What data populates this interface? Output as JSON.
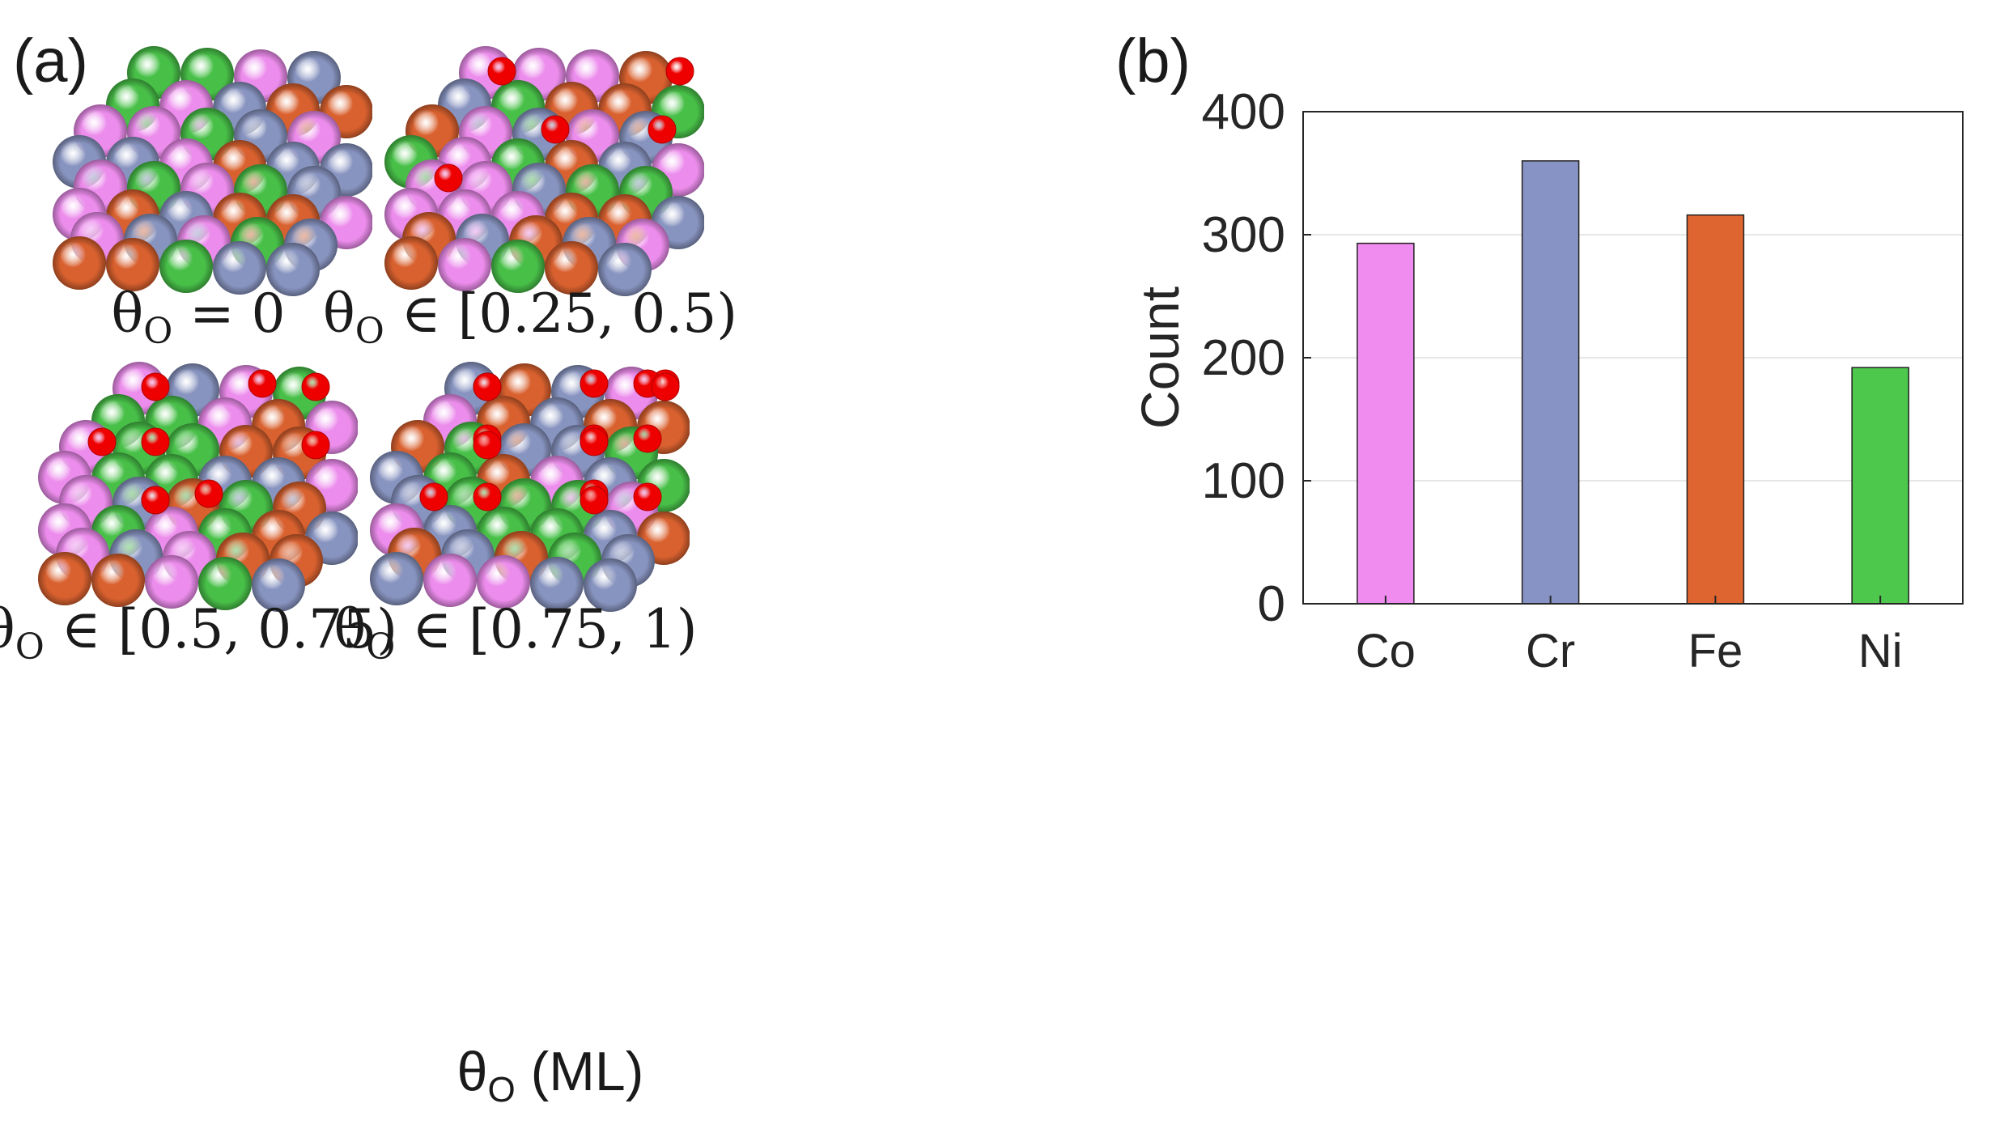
{
  "panel_a": {
    "label": "(a)",
    "structures": [
      {
        "id": "s0",
        "caption": {
          "symbol": "θ",
          "sub": "O",
          "rest": " = 0"
        },
        "adsorbates": []
      },
      {
        "id": "s1",
        "caption": {
          "symbol": "θ",
          "sub": "O",
          "rest": " ∈ [0.25, 0.5)"
        },
        "adsorbates": [
          [
            2,
            -0.7,
            1.2
          ],
          [
            1,
            1.3,
            0.9
          ],
          [
            2,
            1.3,
            0.9
          ],
          [
            3,
            2.3,
            0.9
          ],
          [
            1,
            3.1,
            1.0
          ]
        ]
      },
      {
        "id": "s2",
        "caption": {
          "symbol": "θ",
          "sub": "O",
          "rest": " ∈ [0.5, 0.75)"
        },
        "adsorbates": [
          [
            2,
            0.7,
            0.9
          ],
          [
            2,
            2.9,
            0.9
          ],
          [
            3,
            1.3,
            0.9
          ],
          [
            2,
            3.8,
            1.0
          ],
          [
            1,
            1.4,
            0.9
          ],
          [
            2,
            1.4,
            0.9
          ],
          [
            2,
            3.3,
            0.9
          ],
          [
            1,
            3.2,
            1.0
          ],
          [
            3,
            3.1,
            1.0
          ]
        ]
      },
      {
        "id": "s3",
        "caption": {
          "symbol": "θ",
          "sub": "O",
          "rest": " ∈ [0.75, 1)"
        },
        "adsorbates": [
          [
            2,
            0.8,
            0.9
          ],
          [
            2,
            1.8,
            0.9
          ],
          [
            3,
            3.1,
            0.9
          ],
          [
            3,
            4.2,
            1.0
          ],
          [
            1,
            0.3,
            0.9
          ],
          [
            2,
            1.3,
            0.9
          ],
          [
            3,
            2.3,
            0.9
          ],
          [
            1,
            1.3,
            0.9
          ],
          [
            2,
            2.3,
            0.9
          ],
          [
            2,
            3.3,
            0.9
          ],
          [
            3,
            4.3,
            1.0
          ],
          [
            1,
            0.3,
            0.9
          ],
          [
            2,
            1.4,
            0.9
          ],
          [
            2,
            2.4,
            0.9
          ],
          [
            3,
            3.1,
            1.0
          ],
          [
            3,
            3.8,
            1.0
          ]
        ]
      }
    ],
    "x_axis_title": {
      "symbol": "θ",
      "sub": "O",
      "rest": " (ML)"
    },
    "atom_colors": {
      "Co": "#ec8cec",
      "Cr": "#8894c0",
      "Fe": "#d9612f",
      "Ni": "#48c048",
      "O": "#ee0000"
    }
  },
  "panel_b": {
    "label": "(b)"
  },
  "chart_data": {
    "type": "bar",
    "categories": [
      "Co",
      "Cr",
      "Fe",
      "Ni"
    ],
    "values": [
      293,
      360,
      316,
      192
    ],
    "colors": [
      "#f08cf0",
      "#8793c4",
      "#de6430",
      "#4dc84d"
    ],
    "xlabel": "",
    "ylabel": "Count",
    "ylim": [
      0,
      400
    ],
    "yticks": [
      0,
      100,
      200,
      300,
      400
    ],
    "grid": "horizontal"
  }
}
